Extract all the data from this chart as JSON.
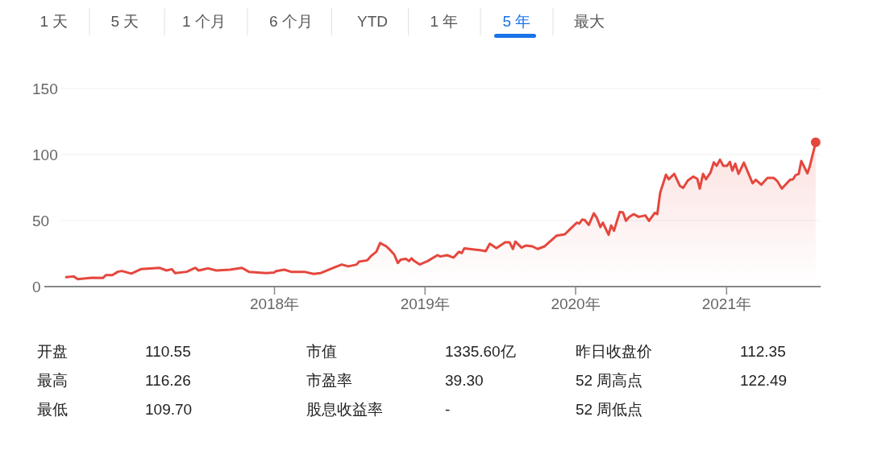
{
  "chart_data": [
    {
      "type": "other",
      "annotations": [
        "1 天",
        "5 天",
        "1 个月",
        "6 个月",
        "YTD",
        "1 年",
        "5 年",
        "最大"
      ]
    },
    {
      "type": "area",
      "color": "#e5473d",
      "grid": "y",
      "xlim": [
        "2016-06-22",
        "2021-08-17"
      ],
      "ylim": [
        0,
        150
      ],
      "yticks": [
        0,
        50,
        100,
        150
      ],
      "xticks": [
        {
          "value": "2018-01-01",
          "label": "2018年"
        },
        {
          "value": "2019-01-01",
          "label": "2019年"
        },
        {
          "value": "2020-01-01",
          "label": "2020年"
        },
        {
          "value": "2021-01-01",
          "label": "2021年"
        }
      ],
      "x": [
        "2016-08-14",
        "2016-09-01",
        "2016-09-11",
        "2016-10-16",
        "2016-11-11",
        "2016-11-18",
        "2016-12-04",
        "2016-12-17",
        "2016-12-27",
        "2017-01-19",
        "2017-02-11",
        "2017-03-28",
        "2017-04-14",
        "2017-04-27",
        "2017-05-05",
        "2017-06-02",
        "2017-06-23",
        "2017-07-01",
        "2017-07-24",
        "2017-08-13",
        "2017-09-15",
        "2017-10-14",
        "2017-10-31",
        "2017-12-12",
        "2017-12-31",
        "2018-01-05",
        "2018-01-25",
        "2018-02-10",
        "2018-03-14",
        "2018-04-06",
        "2018-04-22",
        "2018-05-24",
        "2018-06-13",
        "2018-06-29",
        "2018-07-19",
        "2018-07-25",
        "2018-08-14",
        "2018-08-24",
        "2018-09-05",
        "2018-09-14",
        "2018-09-29",
        "2018-10-09",
        "2018-10-18",
        "2018-10-27",
        "2018-11-03",
        "2018-11-16",
        "2018-11-23",
        "2018-11-29",
        "2018-12-06",
        "2018-12-19",
        "2019-01-07",
        "2019-01-31",
        "2019-02-07",
        "2019-02-23",
        "2019-03-11",
        "2019-03-24",
        "2019-03-31",
        "2019-04-06",
        "2019-05-18",
        "2019-05-28",
        "2019-06-07",
        "2019-06-23",
        "2019-07-14",
        "2019-07-25",
        "2019-08-02",
        "2019-08-08",
        "2019-08-23",
        "2019-09-02",
        "2019-09-18",
        "2019-10-01",
        "2019-10-18",
        "2019-11-16",
        "2019-12-06",
        "2019-12-19",
        "2020-01-04",
        "2020-01-10",
        "2020-01-17",
        "2020-01-23",
        "2020-02-02",
        "2020-02-14",
        "2020-02-21",
        "2020-03-01",
        "2020-03-07",
        "2020-03-21",
        "2020-03-27",
        "2020-04-03",
        "2020-04-17",
        "2020-04-25",
        "2020-05-02",
        "2020-05-10",
        "2020-05-21",
        "2020-06-02",
        "2020-06-18",
        "2020-06-27",
        "2020-07-11",
        "2020-07-17",
        "2020-07-24",
        "2020-08-07",
        "2020-08-14",
        "2020-08-27",
        "2020-09-10",
        "2020-09-18",
        "2020-09-29",
        "2020-10-12",
        "2020-10-22",
        "2020-10-28",
        "2020-11-05",
        "2020-11-12",
        "2020-11-23",
        "2020-12-01",
        "2020-12-08",
        "2020-12-16",
        "2020-12-24",
        "2021-01-02",
        "2021-01-09",
        "2021-01-15",
        "2021-01-22",
        "2021-01-30",
        "2021-02-12",
        "2021-03-05",
        "2021-03-13",
        "2021-03-26",
        "2021-04-10",
        "2021-04-25",
        "2021-05-03",
        "2021-05-15",
        "2021-06-04",
        "2021-06-11",
        "2021-06-17",
        "2021-06-25",
        "2021-07-01",
        "2021-07-16",
        "2021-07-22",
        "2021-08-05"
      ],
      "values": [
        7.1,
        7.7,
        5.7,
        6.7,
        6.5,
        8.7,
        8.7,
        11.2,
        11.8,
        9.8,
        13.2,
        14.2,
        12.2,
        13.2,
        10.2,
        11.2,
        14.2,
        12.2,
        13.8,
        12.2,
        12.8,
        14.2,
        11.2,
        10.2,
        10.6,
        11.8,
        12.8,
        11.2,
        11.2,
        9.6,
        10.2,
        14.2,
        16.7,
        15.3,
        16.7,
        18.9,
        19.9,
        23.4,
        26.5,
        33.0,
        30.5,
        27.5,
        24.4,
        17.9,
        20.4,
        21.0,
        19.3,
        21.4,
        19.3,
        16.7,
        19.3,
        23.8,
        22.8,
        23.8,
        22.0,
        26.4,
        25.4,
        28.9,
        27.4,
        26.8,
        32.5,
        29.1,
        33.5,
        33.5,
        28.5,
        34.1,
        29.5,
        31.1,
        30.5,
        28.5,
        30.5,
        38.6,
        39.6,
        43.7,
        48.4,
        47.8,
        50.8,
        50.4,
        46.7,
        55.5,
        52.4,
        45.1,
        48.4,
        39.2,
        46.3,
        42.3,
        56.5,
        56.1,
        49.8,
        52.8,
        54.9,
        52.8,
        53.9,
        49.8,
        55.9,
        54.9,
        71.1,
        84.8,
        81.3,
        85.4,
        76.2,
        74.8,
        80.3,
        83.3,
        81.7,
        74.2,
        85.4,
        81.3,
        86.4,
        94.1,
        91.5,
        96.1,
        91.5,
        91.5,
        94.5,
        87.8,
        93.1,
        85.4,
        93.9,
        78.3,
        80.9,
        77.2,
        82.3,
        82.3,
        80.3,
        74.2,
        80.9,
        81.3,
        84.3,
        85.4,
        95.1,
        85.8,
        91.5,
        109.3
      ]
    },
    {
      "type": "other",
      "annotations": [
        "开盘",
        "110.55",
        "最高",
        "116.26",
        "最低",
        "109.70",
        "市值",
        "1335.60亿",
        "市盈率",
        "39.30",
        "股息收益率",
        "-",
        "昨日收盘价",
        "112.35",
        "52 周高点",
        "122.49",
        "52 周低点"
      ]
    }
  ]
}
